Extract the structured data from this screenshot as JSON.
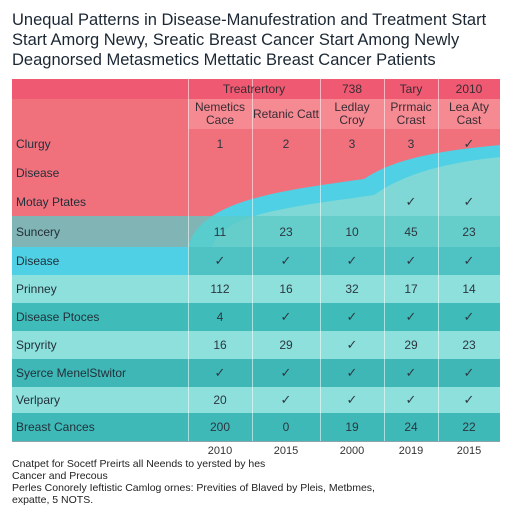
{
  "chart_data": {
    "type": "table",
    "title_lines": [
      "Unequal Patterns in Disease-Manufestration and Treatment Start",
      "Start Amorg Newy, Sreatic Breast Cancer Start Among Newly",
      "Deagnorsed Metasmetics Mettatic Breast Cancer Patients"
    ],
    "header_top": [
      "Treatrertory",
      "738",
      "Tary",
      "2010"
    ],
    "header_sub": [
      "Nemetics Cace",
      "Retanic Catt",
      "Ledlay Croy",
      "Prrmaic Crast",
      "Lea Aty Cast"
    ],
    "rows": [
      {
        "label": "Clurgy",
        "cells": [
          "1",
          "2",
          "3",
          "3",
          "✓"
        ]
      },
      {
        "label": "Disease",
        "cells": [
          "",
          "",
          "",
          "",
          ""
        ]
      },
      {
        "label": "Motay Ptates",
        "cells": [
          "",
          "",
          "",
          "✓",
          "✓"
        ]
      },
      {
        "label": "Suncery",
        "cells": [
          "11",
          "23",
          "10",
          "45",
          "23"
        ]
      },
      {
        "label": "Disease",
        "cells": [
          "✓",
          "✓",
          "✓",
          "✓",
          "✓"
        ]
      },
      {
        "label": "Prinney",
        "cells": [
          "112",
          "16",
          "32",
          "17",
          "14"
        ]
      },
      {
        "label": "Disease Ptoces",
        "cells": [
          "4",
          "✓",
          "✓",
          "✓",
          "✓"
        ]
      },
      {
        "label": "Spryrity",
        "cells": [
          "16",
          "29",
          "✓",
          "29",
          "23"
        ]
      },
      {
        "label": "Syerce MenelStwitor",
        "cells": [
          "✓",
          "✓",
          "✓",
          "✓",
          "✓"
        ]
      },
      {
        "label": "Verlpary",
        "cells": [
          "20",
          "✓",
          "✓",
          "✓",
          "✓"
        ]
      },
      {
        "label": "Breast Cances",
        "cells": [
          "200",
          "0",
          "19",
          "24",
          "22"
        ]
      }
    ],
    "x_years": [
      "2010",
      "2015",
      "2000",
      "2019",
      "2015"
    ],
    "colors": {
      "pink": "#f0707c",
      "pink_header": "#ef5a72",
      "cyan": "#56cfe0",
      "teal_dark": "#3fb7b6",
      "teal_light": "#7fd8d5"
    }
  },
  "notes": [
    "Cnatpet for Socetf Preirts all Neends to yersted by hes",
    "Cancer and Precous",
    "Perles Conorely Ieftistic Camlog ornes: Previties of Blaved by Pleis, Metbmes,",
    "expatte, 5 NOTS."
  ]
}
